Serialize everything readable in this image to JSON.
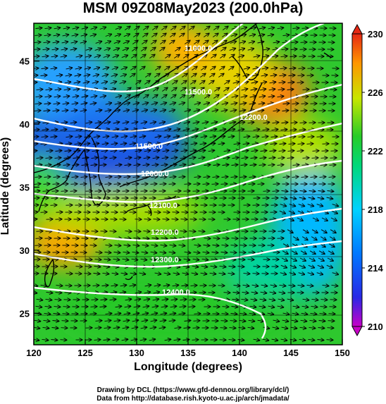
{
  "title": "MSM 09Z08May2023 (200.0hPa)",
  "xlabel": "Longitude (degrees)",
  "ylabel": "Latitude  (degrees)",
  "x_ticks": [
    "120",
    "125",
    "130",
    "135",
    "140",
    "145",
    "150"
  ],
  "y_ticks": [
    "25",
    "30",
    "35",
    "40",
    "45"
  ],
  "colorbar": {
    "ticks": [
      "210",
      "214",
      "218",
      "222",
      "226",
      "230"
    ],
    "range": [
      210,
      230
    ],
    "colors": [
      "#d400d4",
      "#1a1ae6",
      "#00c8ff",
      "#00d890",
      "#1ec81e",
      "#d4e600",
      "#ff9a00",
      "#e61e1e"
    ]
  },
  "contours": [
    {
      "label": "11000.0",
      "value": 11000
    },
    {
      "label": "11500.0",
      "value": 11500
    },
    {
      "label": "12000.0",
      "value": 12000
    },
    {
      "label": "12100.0",
      "value": 12100
    },
    {
      "label": "12200.0",
      "value": 12200
    },
    {
      "label": "12300.0",
      "value": 12300
    },
    {
      "label": "12400.0",
      "value": 12400
    }
  ],
  "credits": [
    "Drawing by DCL (https://www.gfd-dennou.org/library/dcl/)",
    "Data from http://database.rish.kyoto-u.ac.jp/arch/jmadata/"
  ],
  "map": {
    "lon_range": [
      120,
      150
    ],
    "lat_range": [
      22.5,
      48
    ]
  }
}
